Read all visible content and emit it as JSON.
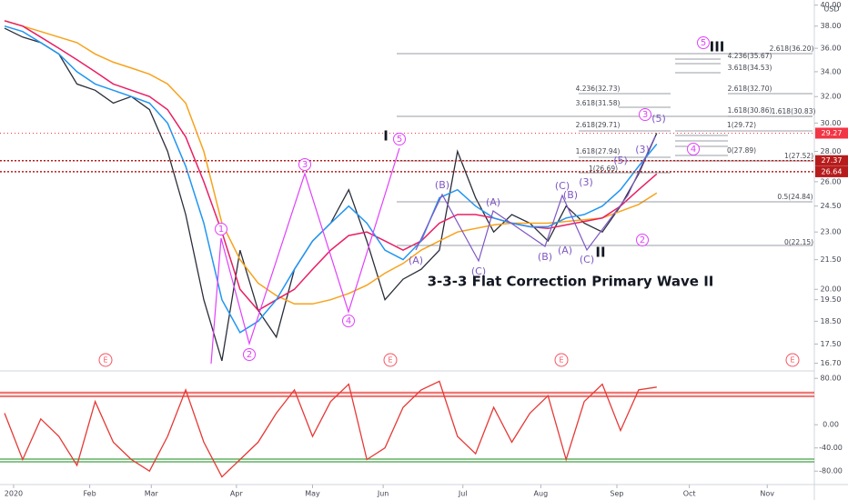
{
  "chart_data": [
    {
      "type": "line",
      "log_scale": true,
      "currency": "USD",
      "xlim": [
        0,
        44.7
      ],
      "xticks": [
        {
          "value": 0.5,
          "label": "2020"
        },
        {
          "value": 4.7,
          "label": "Feb"
        },
        {
          "value": 8.1,
          "label": "Mar"
        },
        {
          "value": 12.8,
          "label": "Apr"
        },
        {
          "value": 17,
          "label": "May"
        },
        {
          "value": 20.9,
          "label": "Jun"
        },
        {
          "value": 25.3,
          "label": "Jul"
        },
        {
          "value": 29.6,
          "label": "Aug"
        },
        {
          "value": 33.8,
          "label": "Sep"
        },
        {
          "value": 37.8,
          "label": "Oct"
        },
        {
          "value": 42.1,
          "label": "Nov"
        }
      ],
      "ylim": [
        16.5,
        40.5
      ],
      "yticks": [
        {
          "value": 40,
          "label": "40.00"
        },
        {
          "value": 38,
          "label": "38.00"
        },
        {
          "value": 36,
          "label": "36.00"
        },
        {
          "value": 34,
          "label": "34.00"
        },
        {
          "value": 32,
          "label": "32.00"
        },
        {
          "value": 30,
          "label": "30.00"
        },
        {
          "value": 28,
          "label": "28.00"
        },
        {
          "value": 26,
          "label": "26.00"
        },
        {
          "value": 24.5,
          "label": "24.50"
        },
        {
          "value": 23,
          "label": "23.00"
        },
        {
          "value": 21.5,
          "label": "21.50"
        },
        {
          "value": 20,
          "label": "20.00"
        },
        {
          "value": 19.5,
          "label": "19.50"
        },
        {
          "value": 18.5,
          "label": "18.50"
        },
        {
          "value": 17.5,
          "label": "17.50"
        },
        {
          "value": 16.7,
          "label": "16.70"
        }
      ],
      "series": [
        {
          "color": "#2a2e39",
          "values": [
            37.8,
            37,
            36.5,
            35.5,
            33,
            32.5,
            31.5,
            32,
            31,
            28,
            24,
            19.5,
            16.8,
            22,
            19,
            17.8,
            21,
            22.5,
            23.5,
            25.5,
            22.5,
            19.5,
            20.5,
            21,
            22,
            28,
            25,
            23,
            24,
            23.5,
            22.5,
            24.5,
            23.5,
            23,
            24.5,
            26.5,
            29.27
          ]
        },
        {
          "color": "#f7a21b",
          "values": [
            38.5,
            38,
            37.5,
            37,
            36.5,
            35.5,
            34.8,
            34.3,
            33.8,
            33,
            31.5,
            28,
            23.5,
            21.5,
            20.3,
            19.7,
            19.3,
            19.3,
            19.5,
            19.8,
            20.2,
            20.8,
            21.3,
            22,
            22.5,
            23,
            23.2,
            23.4,
            23.5,
            23.5,
            23.5,
            23.6,
            23.7,
            23.8,
            24.2,
            24.6,
            25.3
          ]
        },
        {
          "color": "#e91e63",
          "values": [
            38.5,
            38,
            37,
            36,
            35,
            34,
            33,
            32.5,
            32,
            31,
            29,
            26,
            23,
            20,
            19,
            19.5,
            20,
            21,
            22,
            22.8,
            23,
            22.5,
            22,
            22.5,
            23.5,
            24,
            24,
            23.8,
            23.5,
            23.3,
            23.2,
            23.4,
            23.6,
            23.8,
            24.5,
            25.5,
            26.5
          ]
        },
        {
          "color": "#2196f3",
          "values": [
            38,
            37.5,
            36.5,
            35.5,
            34,
            33,
            32.5,
            32,
            31.5,
            30,
            27,
            23.5,
            19.5,
            18,
            18.5,
            19.5,
            21,
            22.5,
            23.5,
            24.5,
            23.5,
            22,
            21.5,
            22.5,
            25,
            25.5,
            24.5,
            23.8,
            23.5,
            23.3,
            23.3,
            23.8,
            24,
            24.5,
            25.5,
            27,
            28.5
          ]
        }
      ],
      "price_labels": [
        29.27,
        27.37,
        26.64
      ],
      "earnings": [
        "E",
        "E",
        "E",
        "E"
      ],
      "annotations": [
        "I",
        "II",
        "III",
        "1",
        "2",
        "3",
        "4",
        "5",
        "5",
        "3",
        "4",
        "2",
        "(A)",
        "(B)",
        "(C)",
        "(A)",
        "(B)",
        "(C)",
        "(B)",
        "(A)",
        "(C)",
        "(3)",
        "(5)",
        "(3)",
        "(5)",
        "3-3-3 Flat Correction Primary Wave II",
        "2.618(36.20)",
        "4.236(35.67)",
        "3.618(34.53)",
        "4.236(32.73)",
        "2.618(32.70)",
        "3.618(31.58)",
        "1.618(30.86)",
        "1.618(30.83)",
        "2.618(29.71)",
        "1(29.72)",
        "1.618(27.94)",
        "1(27.52)",
        "1(26.69)",
        "0.5(24.84)",
        "0(22.15)",
        "0(27.89)"
      ]
    },
    {
      "type": "line",
      "xlim": [
        0,
        44.7
      ],
      "ylim": [
        -100,
        85
      ],
      "yticks": [
        {
          "value": 80,
          "label": "80.00"
        },
        {
          "value": 0,
          "label": "0.00"
        },
        {
          "value": -40,
          "label": "-40.00"
        },
        {
          "value": -80,
          "label": "-80.00"
        }
      ],
      "series": [
        {
          "color": "#e53935",
          "values": [
            20,
            -60,
            10,
            -20,
            -70,
            40,
            -30,
            -60,
            -80,
            -20,
            60,
            -30,
            -90,
            -60,
            -30,
            20,
            60,
            -20,
            40,
            70,
            -60,
            -40,
            30,
            60,
            75,
            -20,
            -50,
            30,
            -30,
            20,
            50,
            -60,
            40,
            70,
            -10,
            60,
            65
          ]
        }
      ]
    }
  ]
}
